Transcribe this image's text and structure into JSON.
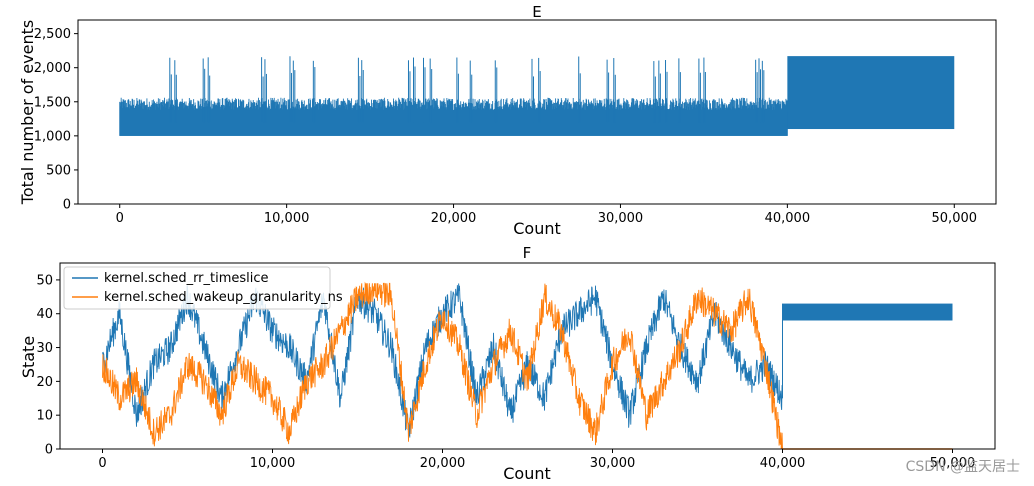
{
  "watermark": "CSDN @监天居士",
  "chart_data": [
    {
      "type": "line",
      "title": "E",
      "xlabel": "Count",
      "ylabel": "Total number of events",
      "xlim": [
        -2500,
        52500
      ],
      "ylim": [
        0,
        2700
      ],
      "xticks": [
        0,
        10000,
        20000,
        30000,
        40000,
        50000
      ],
      "xtick_labels": [
        "0",
        "10,000",
        "20,000",
        "30,000",
        "40,000",
        "50,000"
      ],
      "yticks": [
        0,
        500,
        1000,
        1500,
        2000,
        2500
      ],
      "ytick_labels": [
        "0",
        "500",
        "1,000",
        "1,500",
        "2,000",
        "2,500"
      ],
      "color": "#1f77b4",
      "series": [
        {
          "name": "Total number of events",
          "phase1": {
            "x_range": [
              0,
              40000
            ],
            "base": 1000,
            "typical_max": 1500,
            "peak": 1560
          },
          "spikes_x": [
            3000,
            3300,
            5000,
            5300,
            8500,
            8700,
            10200,
            10400,
            11600,
            14300,
            14500,
            17300,
            17600,
            18200,
            18600,
            20200,
            21000,
            22500,
            24700,
            25100,
            27500,
            29200,
            29600,
            32000,
            32300,
            32700,
            33500,
            34700,
            35000,
            38100,
            38300,
            38500
          ],
          "spike_value": 2170,
          "phase2": {
            "x_range": [
              40000,
              50000
            ],
            "low": 1100,
            "high": 2170
          }
        }
      ]
    },
    {
      "type": "line",
      "title": "F",
      "xlabel": "Count",
      "ylabel": "State",
      "xlim": [
        -2500,
        52500
      ],
      "ylim": [
        0,
        55
      ],
      "xticks": [
        0,
        10000,
        20000,
        30000,
        40000,
        50000
      ],
      "xtick_labels": [
        "0",
        "10,000",
        "20,000",
        "30,000",
        "40,000",
        "50,000"
      ],
      "yticks": [
        0,
        10,
        20,
        30,
        40,
        50
      ],
      "ytick_labels": [
        "0",
        "10",
        "20",
        "30",
        "40",
        "50"
      ],
      "legend_position": "top-left",
      "series": [
        {
          "name": "kernel.sched_rr_timeslice",
          "color": "#1f77b4",
          "x": [
            0,
            1000,
            2000,
            3000,
            4000,
            5000,
            6000,
            7000,
            8000,
            9000,
            10000,
            11000,
            12000,
            13000,
            14000,
            15000,
            16000,
            17000,
            18000,
            19000,
            20000,
            21000,
            22000,
            23000,
            24000,
            25000,
            26000,
            27000,
            28000,
            29000,
            30000,
            31000,
            32000,
            33000,
            34000,
            35000,
            36000,
            37000,
            38000,
            39000,
            40000
          ],
          "y": [
            25,
            40,
            10,
            25,
            30,
            45,
            30,
            15,
            30,
            45,
            35,
            30,
            20,
            45,
            15,
            45,
            40,
            30,
            5,
            30,
            40,
            45,
            15,
            30,
            10,
            25,
            15,
            35,
            40,
            45,
            25,
            10,
            30,
            45,
            30,
            20,
            40,
            30,
            20,
            25,
            15
          ],
          "plateau": {
            "x_range": [
              40000,
              50000
            ],
            "low": 38,
            "high": 43
          }
        },
        {
          "name": "kernel.sched_wakeup_granularity_ns",
          "color": "#ff7f0e",
          "x": [
            0,
            1000,
            2000,
            3000,
            4000,
            5000,
            6000,
            7000,
            8000,
            9000,
            10000,
            11000,
            12000,
            13000,
            14000,
            15000,
            16000,
            17000,
            18000,
            19000,
            20000,
            21000,
            22000,
            23000,
            24000,
            25000,
            26000,
            27000,
            28000,
            29000,
            30000,
            31000,
            32000,
            33000,
            34000,
            35000,
            36000,
            37000,
            38000,
            39000,
            40000
          ],
          "y": [
            25,
            15,
            20,
            5,
            10,
            25,
            20,
            10,
            25,
            20,
            15,
            5,
            20,
            25,
            35,
            45,
            48,
            45,
            5,
            25,
            40,
            30,
            10,
            25,
            35,
            20,
            45,
            35,
            15,
            5,
            25,
            35,
            10,
            20,
            30,
            45,
            40,
            35,
            45,
            25,
            0
          ],
          "plateau": {
            "x_range": [
              40000,
              50000
            ],
            "low": 0,
            "high": 0
          }
        }
      ]
    }
  ]
}
